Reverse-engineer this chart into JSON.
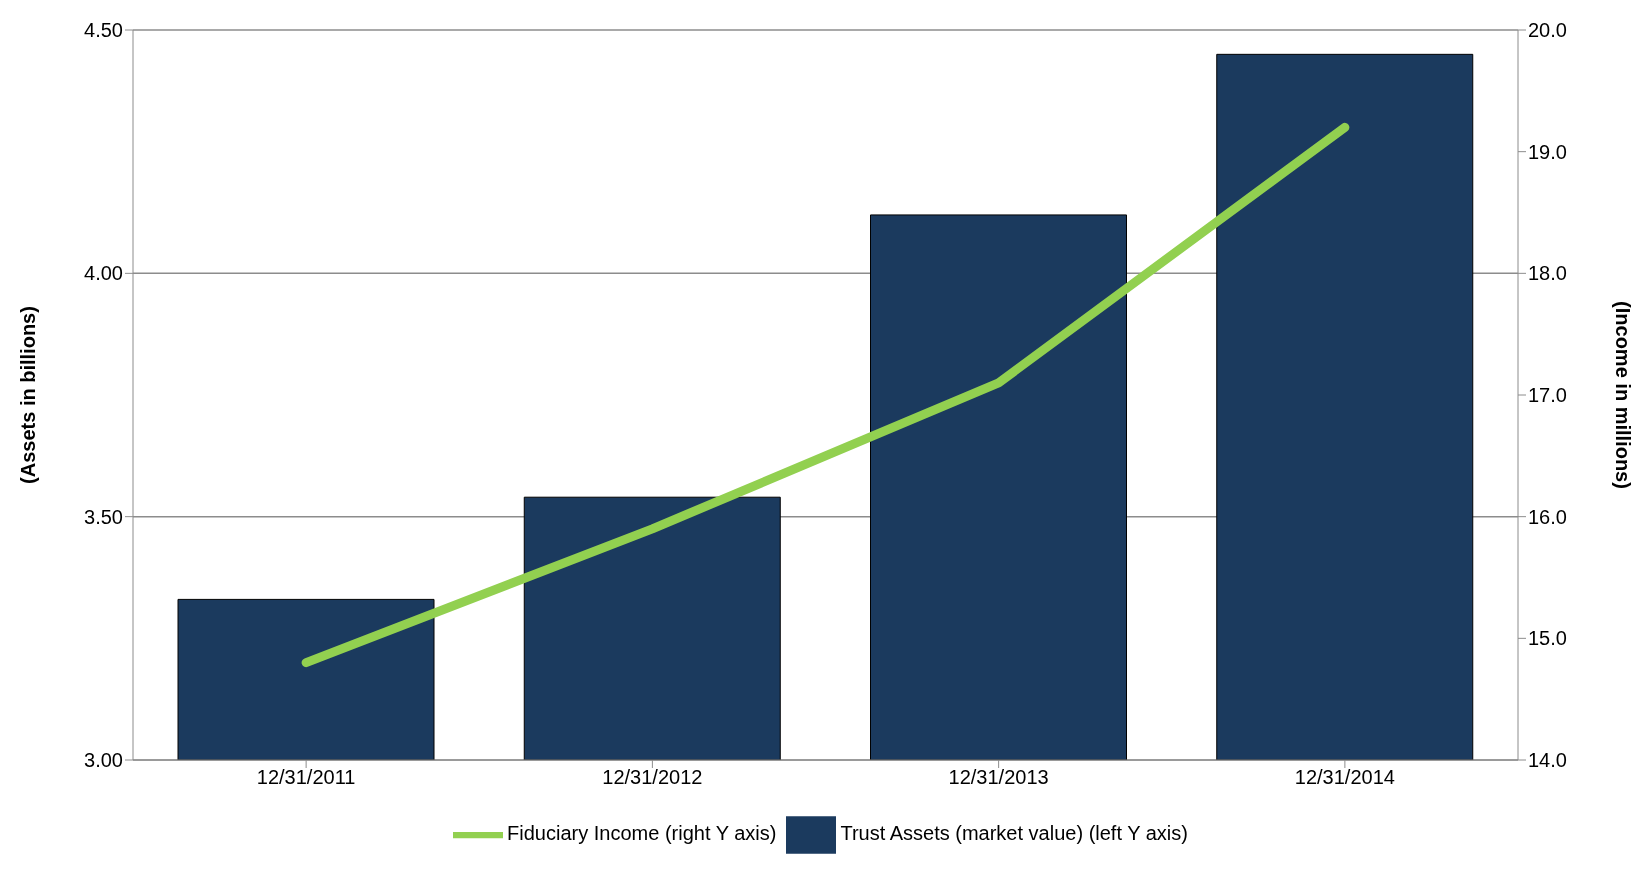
{
  "chart_data": {
    "type": "bar",
    "ylabel": "(Assets in billions)",
    "y2label": "(Income in millions)",
    "categories": [
      "12/31/2011",
      "12/31/2012",
      "12/31/2013",
      "12/31/2014"
    ],
    "series": [
      {
        "name": "Trust Assets (market value) (left Y axis)",
        "color": "#1b3a5e",
        "values": [
          3.33,
          3.54,
          4.12,
          4.45
        ]
      },
      {
        "name": "Fiduciary Income (right Y axis)",
        "type": "line",
        "axis": "y2",
        "color": "#92d050",
        "values": [
          14.8,
          15.9,
          17.1,
          19.2
        ]
      }
    ],
    "ylim": [
      3,
      4.5
    ],
    "yticks": [
      {
        "value": 3,
        "label": "3.00"
      },
      {
        "value": 3.5,
        "label": "3.50"
      },
      {
        "value": 4,
        "label": "4.00"
      },
      {
        "value": 4.5,
        "label": "4.50"
      }
    ],
    "y2lim": [
      14,
      20
    ],
    "y2ticks": [
      {
        "value": 14,
        "label": "14.0"
      },
      {
        "value": 15,
        "label": "15.0"
      },
      {
        "value": 16,
        "label": "16.0"
      },
      {
        "value": 17,
        "label": "17.0"
      },
      {
        "value": 18,
        "label": "18.0"
      },
      {
        "value": 19,
        "label": "19.0"
      },
      {
        "value": 20,
        "label": "20.0"
      }
    ],
    "grid": "y",
    "legend": "bottom",
    "marker": "none",
    "line_style": "solid"
  }
}
